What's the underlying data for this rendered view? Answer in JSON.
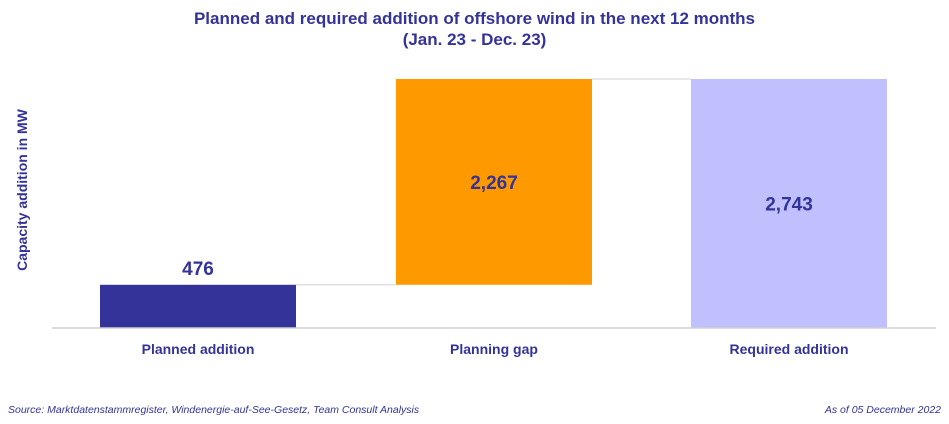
{
  "title_line1": "Planned and required addition of offshore wind in the next 12 months",
  "title_line2": "(Jan. 23 - Dec. 23)",
  "source": "Source: Marktdatenstammregister, Windenergie-auf-See-Gesetz, Team Consult Analysis",
  "as_of": "As of 05 December 2022",
  "colors": {
    "title": "#333399",
    "planned": "#333399",
    "gap": "#FF9900",
    "required": "#C0BFFF",
    "axis": "#D0D0D0"
  },
  "chart_data": {
    "type": "bar",
    "subtype": "waterfall",
    "categories": [
      "Planned addition",
      "Planning gap",
      "Required addition"
    ],
    "values": [
      476,
      2267,
      2743
    ],
    "value_labels": [
      "476",
      "2,267",
      "2,743"
    ],
    "bases": [
      0,
      476,
      0
    ],
    "ylabel": "Capacity addition in MW",
    "xlabel": "",
    "ylim": [
      0,
      2743
    ],
    "grid": false,
    "legend": "none"
  }
}
